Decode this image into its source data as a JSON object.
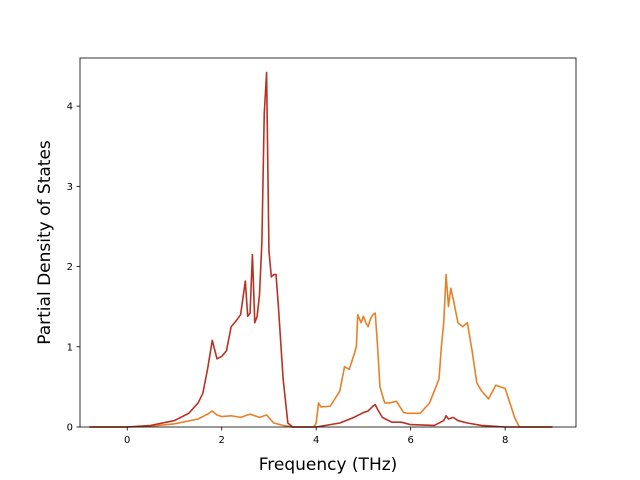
{
  "chart_data": {
    "type": "line",
    "xlabel": "Frequency (THz)",
    "ylabel": "Partial Density of States",
    "xlim": [
      -1.0,
      9.5
    ],
    "ylim": [
      0,
      4.6
    ],
    "xticks": [
      0,
      2,
      4,
      6,
      8
    ],
    "yticks": [
      0,
      1,
      2,
      3,
      4
    ],
    "grid": false,
    "series": [
      {
        "color": "#e8802a",
        "x": [
          -0.8,
          0.0,
          0.5,
          1.0,
          1.5,
          1.7,
          1.8,
          1.9,
          2.0,
          2.2,
          2.4,
          2.6,
          2.8,
          2.95,
          3.1,
          3.3,
          3.4,
          3.5,
          3.95,
          4.0,
          4.05,
          4.1,
          4.3,
          4.5,
          4.6,
          4.7,
          4.8,
          4.85,
          4.88,
          4.95,
          5.0,
          5.05,
          5.1,
          5.15,
          5.2,
          5.25,
          5.3,
          5.35,
          5.45,
          5.55,
          5.7,
          5.85,
          5.95,
          6.2,
          6.4,
          6.5,
          6.6,
          6.65,
          6.7,
          6.75,
          6.8,
          6.85,
          6.9,
          7.0,
          7.1,
          7.2,
          7.3,
          7.4,
          7.5,
          7.65,
          7.8,
          7.9,
          8.0,
          8.1,
          8.2,
          8.3,
          9.0
        ],
        "y": [
          0,
          0,
          0.01,
          0.04,
          0.1,
          0.16,
          0.2,
          0.15,
          0.13,
          0.14,
          0.12,
          0.16,
          0.12,
          0.15,
          0.05,
          0.02,
          0.01,
          0,
          0,
          0.05,
          0.3,
          0.25,
          0.26,
          0.45,
          0.75,
          0.72,
          0.9,
          1.0,
          1.4,
          1.3,
          1.38,
          1.3,
          1.25,
          1.35,
          1.4,
          1.42,
          1.0,
          0.5,
          0.3,
          0.3,
          0.32,
          0.18,
          0.17,
          0.17,
          0.3,
          0.45,
          0.6,
          1.0,
          1.3,
          1.9,
          1.5,
          1.73,
          1.6,
          1.3,
          1.25,
          1.3,
          0.95,
          0.55,
          0.45,
          0.35,
          0.52,
          0.5,
          0.48,
          0.3,
          0.12,
          0.0,
          0.0
        ]
      },
      {
        "color": "#b83224",
        "x": [
          -0.8,
          0.0,
          0.5,
          1.0,
          1.3,
          1.5,
          1.6,
          1.7,
          1.8,
          1.9,
          2.0,
          2.1,
          2.2,
          2.3,
          2.4,
          2.5,
          2.55,
          2.6,
          2.65,
          2.7,
          2.75,
          2.8,
          2.85,
          2.9,
          2.95,
          3.0,
          3.05,
          3.1,
          3.15,
          3.2,
          3.3,
          3.4,
          3.5,
          4.0,
          4.5,
          4.8,
          4.9,
          5.0,
          5.1,
          5.2,
          5.25,
          5.3,
          5.4,
          5.6,
          5.8,
          6.0,
          6.5,
          6.7,
          6.75,
          6.8,
          6.9,
          7.0,
          7.2,
          7.5,
          8.0,
          9.0
        ],
        "y": [
          0,
          0,
          0.02,
          0.08,
          0.17,
          0.3,
          0.42,
          0.72,
          1.08,
          0.85,
          0.88,
          0.95,
          1.25,
          1.32,
          1.4,
          1.82,
          1.38,
          1.42,
          2.15,
          1.3,
          1.38,
          1.65,
          2.3,
          3.9,
          4.42,
          2.2,
          1.87,
          1.9,
          1.9,
          1.5,
          0.6,
          0.05,
          0,
          0,
          0.05,
          0.12,
          0.15,
          0.18,
          0.2,
          0.26,
          0.28,
          0.22,
          0.12,
          0.06,
          0.06,
          0.03,
          0.02,
          0.08,
          0.14,
          0.1,
          0.12,
          0.08,
          0.05,
          0.02,
          0.0,
          0.0
        ]
      }
    ]
  }
}
